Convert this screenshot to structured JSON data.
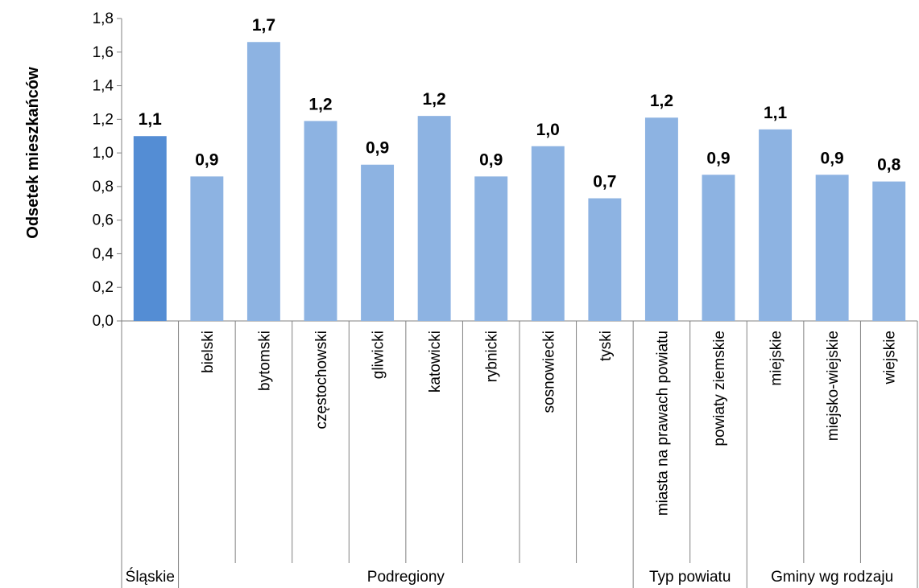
{
  "chart_data": {
    "type": "bar",
    "title": "",
    "xlabel": "",
    "ylabel": "Odsetek mieszkańców",
    "ylim": [
      0,
      1.8
    ],
    "yticks": [
      "0,0",
      "0,2",
      "0,4",
      "0,6",
      "0,8",
      "1,0",
      "1,2",
      "1,4",
      "1,6",
      "1,8"
    ],
    "grid": false,
    "legend": "none",
    "colors": {
      "highlight": "#548dd4",
      "bar": "#8db3e2"
    },
    "categories": [
      "",
      "bielski",
      "bytomski",
      "częstochowski",
      "gliwicki",
      "katowicki",
      "rybnicki",
      "sosnowiecki",
      "tyski",
      "miasta na prawach powiatu",
      "powiaty ziemskie",
      "miejskie",
      "miejsko-wiejskie",
      "wiejskie"
    ],
    "values": [
      1.1,
      0.86,
      1.66,
      1.19,
      0.93,
      1.22,
      0.86,
      1.04,
      0.73,
      1.21,
      0.87,
      1.14,
      0.87,
      0.83
    ],
    "data_labels": [
      "1,1",
      "0,9",
      "1,7",
      "1,2",
      "0,9",
      "1,2",
      "0,9",
      "1,0",
      "0,7",
      "1,2",
      "0,9",
      "1,1",
      "0,9",
      "0,8"
    ],
    "highlight_index": 0,
    "groups": [
      {
        "label": "Śląskie",
        "start": 0,
        "count": 1
      },
      {
        "label": "Podregiony",
        "start": 1,
        "count": 8
      },
      {
        "label": "Typ powiatu",
        "start": 9,
        "count": 2
      },
      {
        "label": "Gminy wg rodzaju",
        "start": 11,
        "count": 3
      }
    ]
  }
}
